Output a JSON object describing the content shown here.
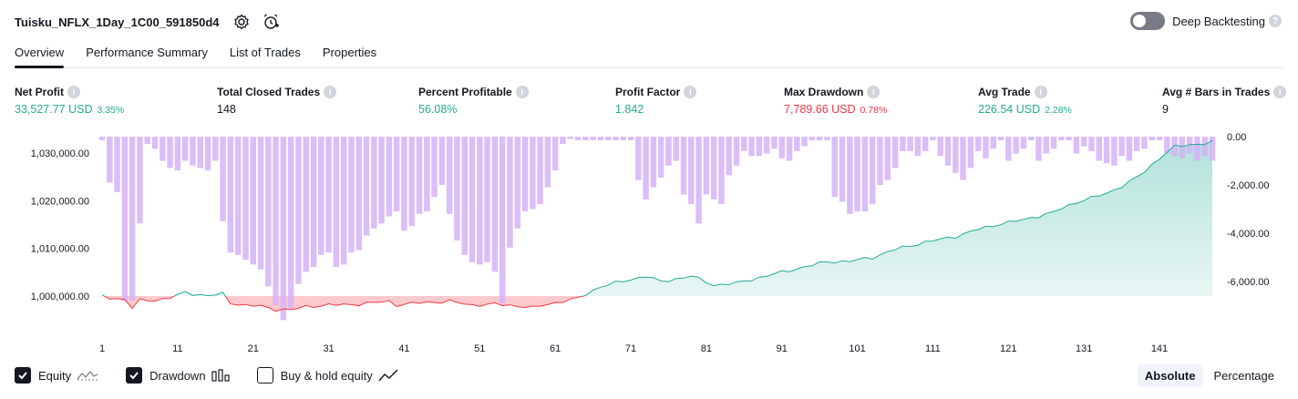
{
  "header": {
    "title": "Tuisku_NFLX_1Day_1C00_591850d4",
    "settings_icon": "gear-icon",
    "alert_icon": "alarm-clock-plus-icon",
    "deep_backtesting_label": "Deep Backtesting",
    "deep_backtesting_on": false,
    "info_symbol": "?"
  },
  "tabs": [
    {
      "label": "Overview",
      "active": true
    },
    {
      "label": "Performance Summary",
      "active": false
    },
    {
      "label": "List of Trades",
      "active": false
    },
    {
      "label": "Properties",
      "active": false
    }
  ],
  "metrics": {
    "net_profit": {
      "label": "Net Profit",
      "value": "33,527.77 USD",
      "pct": "3.35%"
    },
    "total_closed_trades": {
      "label": "Total Closed Trades",
      "value": "148"
    },
    "percent_profitable": {
      "label": "Percent Profitable",
      "value": "56.08%"
    },
    "profit_factor": {
      "label": "Profit Factor",
      "value": "1.842"
    },
    "max_drawdown": {
      "label": "Max Drawdown",
      "value": "7,789.66 USD",
      "pct": "0.78%"
    },
    "avg_trade": {
      "label": "Avg Trade",
      "value": "226.54 USD",
      "pct": "2.28%"
    },
    "avg_bars": {
      "label": "Avg # Bars in Trades",
      "value": "9"
    }
  },
  "legend": {
    "equity": {
      "label": "Equity",
      "checked": true
    },
    "drawdown": {
      "label": "Drawdown",
      "checked": true
    },
    "buy_hold": {
      "label": "Buy & hold equity",
      "checked": false
    }
  },
  "mode": {
    "absolute": "Absolute",
    "percentage": "Percentage",
    "active": "absolute"
  },
  "colors": {
    "profit": "#22ab94",
    "loss": "#f23645",
    "drawdown_bar": "#d5b3f7",
    "equity_fill": "#d7f2ea",
    "loss_fill": "#fbd5d9"
  },
  "chart_data": {
    "type": "area",
    "x_ticks": [
      1,
      11,
      21,
      31,
      41,
      51,
      61,
      71,
      81,
      91,
      101,
      111,
      121,
      131,
      141
    ],
    "x_range": [
      1,
      148
    ],
    "left_axis": {
      "ticks": [
        1000000,
        1010000,
        1020000,
        1030000
      ],
      "tick_labels": [
        "1,000,000.00",
        "1,010,000.00",
        "1,020,000.00",
        "1,030,000.00"
      ],
      "range": [
        995000,
        1034000
      ],
      "baseline": 1000000
    },
    "right_axis": {
      "ticks": [
        0,
        -2000,
        -4000,
        -6000
      ],
      "tick_labels": [
        "0.00",
        "-2,000.00",
        "-4,000.00",
        "-6,000.00"
      ],
      "range": [
        -7600,
        0
      ]
    },
    "series": [
      {
        "name": "Equity",
        "key_points": [
          [
            1,
            1000000
          ],
          [
            4,
            999200
          ],
          [
            5,
            997500
          ],
          [
            6,
            999100
          ],
          [
            9,
            999300
          ],
          [
            10,
            999600
          ],
          [
            12,
            1000800
          ],
          [
            15,
            1000000
          ],
          [
            17,
            1000500
          ],
          [
            18,
            998600
          ],
          [
            20,
            998000
          ],
          [
            22,
            997900
          ],
          [
            24,
            997200
          ],
          [
            26,
            997100
          ],
          [
            28,
            997800
          ],
          [
            31,
            998100
          ],
          [
            35,
            998300
          ],
          [
            39,
            998900
          ],
          [
            40,
            998100
          ],
          [
            43,
            998600
          ],
          [
            47,
            998900
          ],
          [
            50,
            998100
          ],
          [
            53,
            998300
          ],
          [
            57,
            997800
          ],
          [
            58,
            997500
          ],
          [
            60,
            998300
          ],
          [
            64,
            999500
          ],
          [
            67,
            1002000
          ],
          [
            73,
            1004200
          ],
          [
            75,
            1003000
          ],
          [
            79,
            1004200
          ],
          [
            82,
            1002300
          ],
          [
            85,
            1002700
          ],
          [
            87,
            1003500
          ],
          [
            91,
            1005000
          ],
          [
            94,
            1006100
          ],
          [
            97,
            1007200
          ],
          [
            100,
            1007300
          ],
          [
            103,
            1008100
          ],
          [
            106,
            1009800
          ],
          [
            110,
            1011300
          ],
          [
            114,
            1012500
          ],
          [
            117,
            1014000
          ],
          [
            120,
            1015200
          ],
          [
            123,
            1016000
          ],
          [
            127,
            1017600
          ],
          [
            130,
            1019700
          ],
          [
            134,
            1021500
          ],
          [
            137,
            1023900
          ],
          [
            139,
            1026000
          ],
          [
            141,
            1029000
          ],
          [
            143,
            1031300
          ],
          [
            148,
            1032300
          ]
        ]
      },
      {
        "name": "Drawdown",
        "key_points": [
          [
            1,
            -150
          ],
          [
            2,
            -1900
          ],
          [
            3,
            -2300
          ],
          [
            4,
            -6800
          ],
          [
            5,
            -6800
          ],
          [
            6,
            -3600
          ],
          [
            7,
            -300
          ],
          [
            8,
            -500
          ],
          [
            9,
            -1000
          ],
          [
            10,
            -1300
          ],
          [
            11,
            -1400
          ],
          [
            12,
            -1000
          ],
          [
            13,
            -1200
          ],
          [
            14,
            -1300
          ],
          [
            15,
            -1400
          ],
          [
            16,
            -1000
          ],
          [
            17,
            -3500
          ],
          [
            18,
            -4800
          ],
          [
            19,
            -4900
          ],
          [
            20,
            -5100
          ],
          [
            21,
            -5300
          ],
          [
            22,
            -5500
          ],
          [
            23,
            -6200
          ],
          [
            24,
            -7000
          ],
          [
            25,
            -7600
          ],
          [
            26,
            -7100
          ],
          [
            27,
            -6100
          ],
          [
            28,
            -5600
          ],
          [
            29,
            -5400
          ],
          [
            30,
            -4900
          ],
          [
            31,
            -4800
          ],
          [
            32,
            -5400
          ],
          [
            33,
            -5300
          ],
          [
            34,
            -4800
          ],
          [
            35,
            -4700
          ],
          [
            36,
            -4100
          ],
          [
            37,
            -3800
          ],
          [
            38,
            -3600
          ],
          [
            39,
            -3300
          ],
          [
            40,
            -3100
          ],
          [
            41,
            -3900
          ],
          [
            42,
            -3700
          ],
          [
            43,
            -3200
          ],
          [
            44,
            -3100
          ],
          [
            45,
            -2500
          ],
          [
            46,
            -2000
          ],
          [
            47,
            -3200
          ],
          [
            48,
            -4300
          ],
          [
            49,
            -4900
          ],
          [
            50,
            -5200
          ],
          [
            51,
            -5300
          ],
          [
            52,
            -5200
          ],
          [
            53,
            -5600
          ],
          [
            54,
            -6900
          ],
          [
            55,
            -4600
          ],
          [
            56,
            -3800
          ],
          [
            57,
            -3100
          ],
          [
            58,
            -3000
          ],
          [
            59,
            -2800
          ],
          [
            60,
            -2100
          ],
          [
            61,
            -1400
          ],
          [
            62,
            -300
          ],
          [
            63,
            -100
          ],
          [
            64,
            -150
          ],
          [
            65,
            -150
          ],
          [
            66,
            -150
          ],
          [
            67,
            -150
          ],
          [
            68,
            -150
          ],
          [
            69,
            -150
          ],
          [
            70,
            -150
          ],
          [
            71,
            -150
          ],
          [
            72,
            -1800
          ],
          [
            73,
            -2600
          ],
          [
            74,
            -2100
          ],
          [
            75,
            -1700
          ],
          [
            76,
            -1200
          ],
          [
            77,
            -1000
          ],
          [
            78,
            -2400
          ],
          [
            79,
            -2800
          ],
          [
            80,
            -3600
          ],
          [
            81,
            -2400
          ],
          [
            82,
            -2600
          ],
          [
            83,
            -2800
          ],
          [
            84,
            -1600
          ],
          [
            85,
            -1200
          ],
          [
            86,
            -600
          ],
          [
            87,
            -800
          ],
          [
            88,
            -800
          ],
          [
            89,
            -700
          ],
          [
            90,
            -500
          ],
          [
            91,
            -900
          ],
          [
            92,
            -1000
          ],
          [
            93,
            -600
          ],
          [
            94,
            -400
          ],
          [
            95,
            -150
          ],
          [
            96,
            -150
          ],
          [
            97,
            -150
          ],
          [
            98,
            -2500
          ],
          [
            99,
            -2700
          ],
          [
            100,
            -3200
          ],
          [
            101,
            -3100
          ],
          [
            102,
            -3100
          ],
          [
            103,
            -2800
          ],
          [
            104,
            -2000
          ],
          [
            105,
            -1800
          ],
          [
            106,
            -1300
          ],
          [
            107,
            -600
          ],
          [
            108,
            -600
          ],
          [
            109,
            -800
          ],
          [
            110,
            -600
          ],
          [
            111,
            -150
          ],
          [
            112,
            -800
          ],
          [
            113,
            -1200
          ],
          [
            114,
            -1500
          ],
          [
            115,
            -1800
          ],
          [
            116,
            -1300
          ],
          [
            117,
            -600
          ],
          [
            118,
            -900
          ],
          [
            119,
            -500
          ],
          [
            120,
            -150
          ],
          [
            121,
            -1000
          ],
          [
            122,
            -700
          ],
          [
            123,
            -500
          ],
          [
            124,
            -150
          ],
          [
            125,
            -1000
          ],
          [
            126,
            -700
          ],
          [
            127,
            -500
          ],
          [
            128,
            -150
          ],
          [
            129,
            -150
          ],
          [
            130,
            -700
          ],
          [
            131,
            -400
          ],
          [
            132,
            -600
          ],
          [
            133,
            -1000
          ],
          [
            134,
            -1100
          ],
          [
            135,
            -1200
          ],
          [
            136,
            -800
          ],
          [
            137,
            -1000
          ],
          [
            138,
            -600
          ],
          [
            139,
            -500
          ],
          [
            140,
            -150
          ],
          [
            141,
            -150
          ],
          [
            142,
            -700
          ],
          [
            143,
            -800
          ],
          [
            144,
            -900
          ],
          [
            145,
            -700
          ],
          [
            146,
            -1000
          ],
          [
            147,
            -800
          ],
          [
            148,
            -1000
          ]
        ]
      }
    ]
  }
}
